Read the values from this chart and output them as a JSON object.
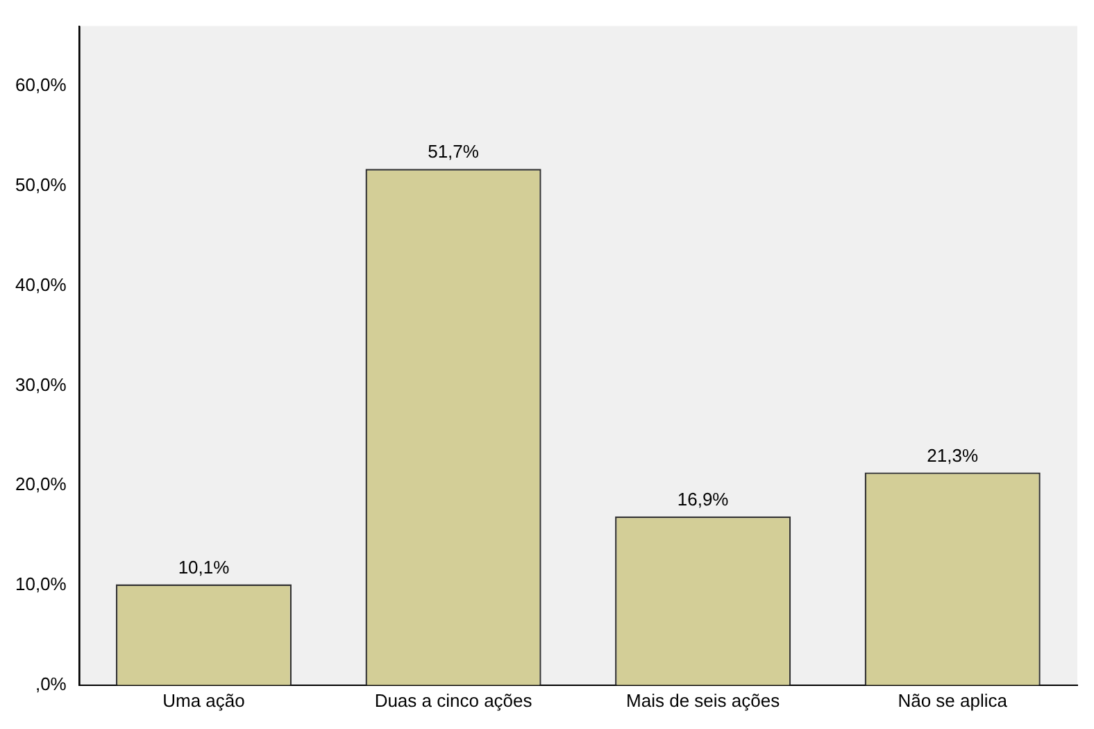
{
  "chart_data": {
    "type": "bar",
    "categories": [
      "Uma ação",
      "Duas a cinco ações",
      "Mais de seis ações",
      "Não se aplica"
    ],
    "values": [
      10.1,
      51.7,
      16.9,
      21.3
    ],
    "value_labels": [
      "10,1%",
      "51,7%",
      "16,9%",
      "21,3%"
    ],
    "color": "#d3ce97",
    "ylim": [
      0,
      66
    ],
    "yticks": [
      {
        "value": 0,
        "label": ",0%"
      },
      {
        "value": 10,
        "label": "10,0%"
      },
      {
        "value": 20,
        "label": "20,0%"
      },
      {
        "value": 30,
        "label": "30,0%"
      },
      {
        "value": 40,
        "label": "40,0%"
      },
      {
        "value": 50,
        "label": "50,0%"
      },
      {
        "value": 60,
        "label": "60,0%"
      }
    ],
    "grid": false,
    "legend": false
  }
}
